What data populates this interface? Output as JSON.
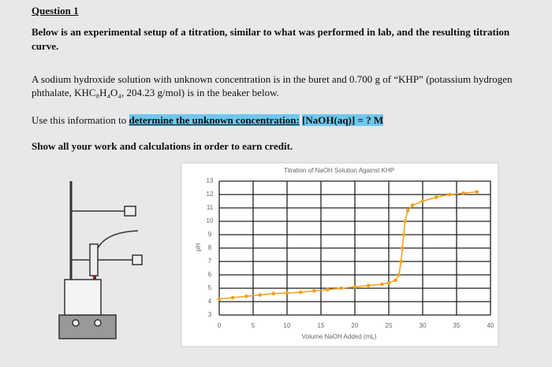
{
  "question": {
    "heading": "Question 1",
    "intro": "Below is an experimental setup of a titration, similar to what was performed in lab, and the resulting titration curve.",
    "setup": "A sodium hydroxide solution with unknown concentration is in the buret and 0.700 g of “KHP” (potassium hydrogen phthalate, KHC₈H₄O₄, 204.23 g/mol) is in the beaker below.",
    "task_start": "Use this information to",
    "task_highlight": "determine the unknown concentration:",
    "task_target": "[NaOH(aq)] = ? M",
    "instruction": "Show all your work and calculations in order to earn credit."
  },
  "chart_data": {
    "type": "line",
    "title": "Titration of NaOH Solution Against KHP",
    "x_label": "Volume NaOH Added (mL)",
    "y_label": "pH",
    "x": [
      0,
      2,
      4,
      6,
      8,
      10,
      12,
      14,
      16,
      18,
      20,
      22,
      24,
      25,
      26,
      26.5,
      26.8,
      27,
      27.2,
      27.4,
      27.8,
      28.5,
      30,
      32,
      34,
      36,
      38
    ],
    "series": [
      {
        "name": "pH",
        "color": "#f2a01c",
        "values": [
          4.2,
          4.3,
          4.4,
          4.5,
          4.6,
          4.65,
          4.7,
          4.8,
          4.9,
          5.0,
          5.1,
          5.2,
          5.3,
          5.4,
          5.6,
          6.0,
          7.0,
          8.0,
          9.0,
          10.0,
          10.8,
          11.2,
          11.5,
          11.8,
          12.0,
          12.1,
          12.2
        ]
      }
    ],
    "xlim": [
      0,
      40
    ],
    "xticks": [
      0,
      5,
      10,
      15,
      20,
      25,
      30,
      35,
      40
    ],
    "ylim": [
      3,
      13
    ],
    "yticks": [
      3,
      4,
      5,
      6,
      7,
      8,
      9,
      10,
      11,
      12,
      13
    ],
    "grid": true
  }
}
